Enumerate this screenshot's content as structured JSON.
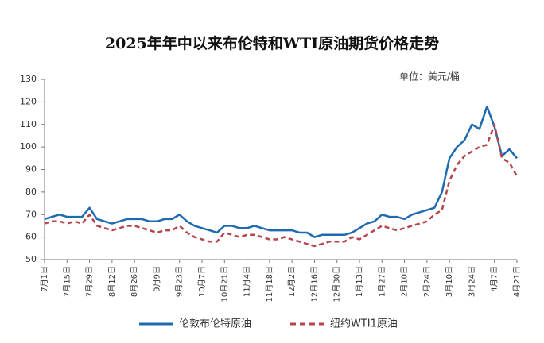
{
  "chart_data": {
    "type": "line",
    "title": "2025年年中以来布伦特和WTI原油期货价格走势",
    "unit": "单位：美元/桶",
    "categories": [
      "7月1日",
      null,
      null,
      "7月15日",
      null,
      null,
      "7月29日",
      null,
      null,
      "8月12日",
      null,
      null,
      "8月26日",
      null,
      null,
      "9月9日",
      null,
      null,
      "9月23日",
      null,
      null,
      "10月7日",
      null,
      null,
      "10月21日",
      null,
      null,
      "11月4日",
      null,
      null,
      "11月18日",
      null,
      null,
      "12月2日",
      null,
      null,
      "12月16日",
      null,
      null,
      "12月30日",
      null,
      null,
      "1月13日",
      null,
      null,
      "1月27日",
      null,
      null,
      "2月10日",
      null,
      null,
      "2月24日",
      null,
      null,
      "3月10日",
      null,
      null,
      "3月24日",
      null,
      null,
      "4月7日",
      null,
      null,
      "4月21日"
    ],
    "series": [
      {
        "name": "伦敦布伦特原油",
        "color": "#1f6bb0",
        "style": "solid",
        "values": [
          68,
          69,
          70,
          69,
          69,
          69,
          73,
          68,
          67,
          66,
          67,
          68,
          68,
          68,
          67,
          67,
          68,
          68,
          70,
          67,
          65,
          64,
          63,
          62,
          65,
          65,
          64,
          64,
          65,
          64,
          63,
          63,
          63,
          63,
          62,
          62,
          60,
          61,
          61,
          61,
          61,
          62,
          64,
          66,
          67,
          70,
          69,
          69,
          68,
          70,
          71,
          72,
          73,
          80,
          95,
          100,
          103,
          110,
          108,
          118,
          109,
          96,
          99,
          95
        ]
      },
      {
        "name": "纽约WTI1原油",
        "color": "#b5454a",
        "style": "dashed",
        "values": [
          66,
          67,
          67,
          66,
          67,
          66,
          70,
          65,
          64,
          63,
          64,
          65,
          65,
          64,
          63,
          62,
          63,
          63,
          65,
          62,
          60,
          59,
          58,
          58,
          62,
          61,
          60,
          61,
          61,
          60,
          59,
          59,
          60,
          59,
          58,
          57,
          56,
          57,
          58,
          58,
          58,
          60,
          59,
          61,
          63,
          65,
          64,
          63,
          64,
          65,
          66,
          67,
          70,
          72,
          85,
          92,
          96,
          98,
          100,
          101,
          110,
          95,
          93,
          87
        ]
      }
    ],
    "ylim": [
      50,
      130
    ],
    "yticks": [
      50,
      60,
      70,
      80,
      90,
      100,
      110,
      120,
      130
    ],
    "grid": false,
    "legend": "bottom"
  }
}
